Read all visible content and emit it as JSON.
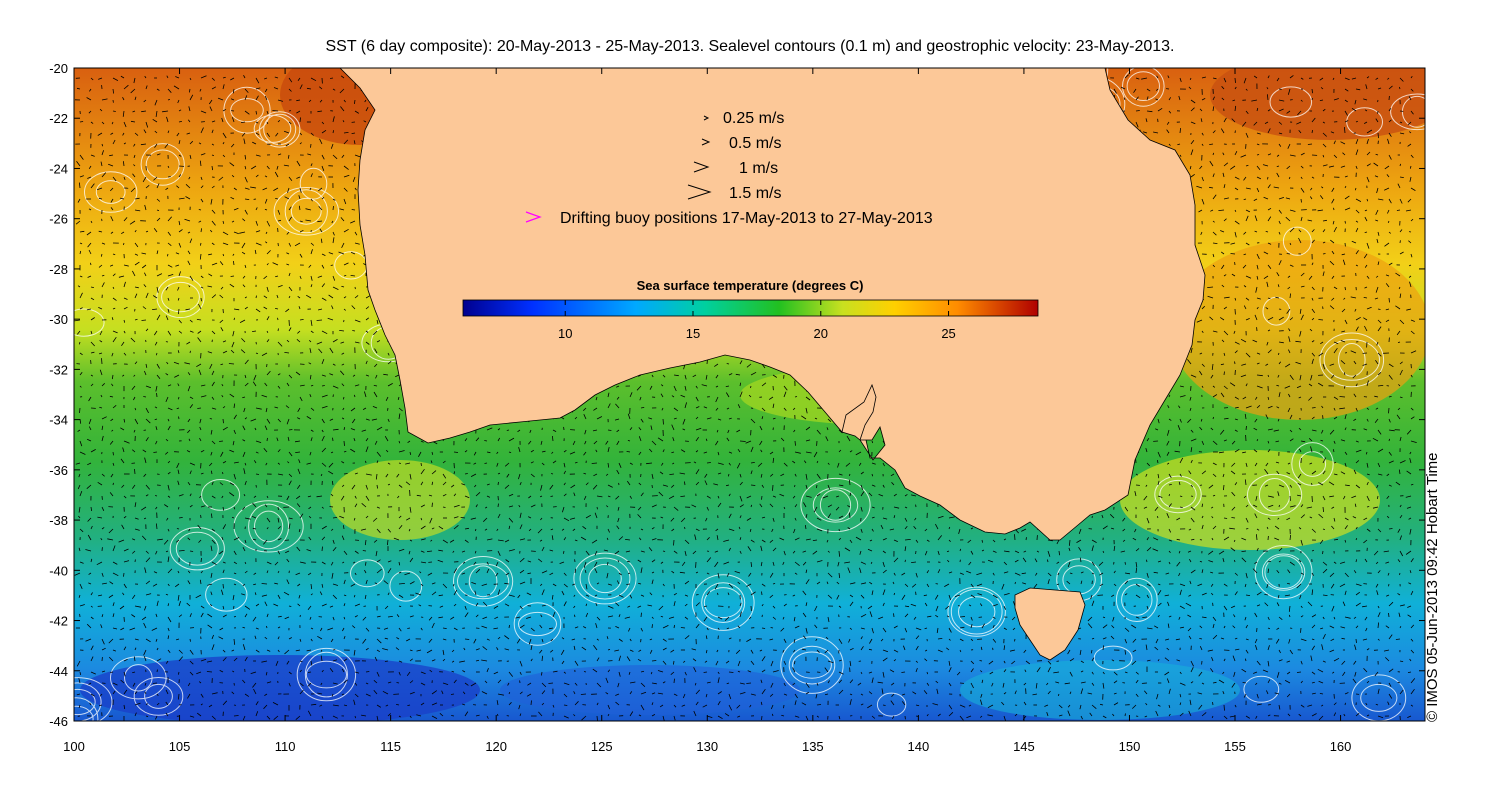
{
  "title": "SST (6 day composite): 20-May-2013 - 25-May-2013. Sealevel contours (0.1 m) and geostrophic velocity: 23-May-2013.",
  "credit": "© IMOS 05-Jun-2013 09:42 Hobart Time",
  "axes": {
    "lon_range": [
      100,
      164
    ],
    "lat_range": [
      -46,
      -20
    ],
    "x_ticks": [
      "100",
      "105",
      "110",
      "115",
      "120",
      "125",
      "130",
      "135",
      "140",
      "145",
      "150",
      "155",
      "160"
    ],
    "y_ticks": [
      "-20",
      "-22",
      "-24",
      "-26",
      "-28",
      "-30",
      "-32",
      "-34",
      "-36",
      "-38",
      "-40",
      "-42",
      "-44",
      "-46"
    ]
  },
  "legend": {
    "items": [
      {
        "label": "0.25 m/s"
      },
      {
        "label": "0.5 m/s"
      },
      {
        "label": "1 m/s"
      },
      {
        "label": "1.5 m/s"
      },
      {
        "label": "Drifting buoy positions 17-May-2013 to 27-May-2013"
      }
    ],
    "buoy_color": "#ff00ff"
  },
  "colorbar": {
    "title": "Sea surface temperature (degrees C)",
    "range": [
      6,
      28.5
    ],
    "ticks": [
      "10",
      "15",
      "20",
      "25"
    ]
  },
  "colors": {
    "land": "#fcc898",
    "contour": "#ffffff",
    "vector": "#000000"
  }
}
